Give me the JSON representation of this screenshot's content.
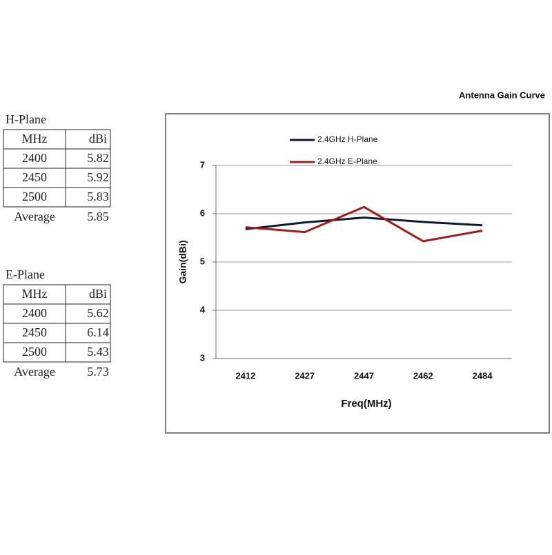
{
  "h_plane": {
    "title": "H-Plane",
    "header": [
      "MHz",
      "dBi"
    ],
    "rows": [
      [
        "2400",
        "5.82"
      ],
      [
        "2450",
        "5.92"
      ],
      [
        "2500",
        "5.83"
      ]
    ],
    "average": [
      "Average",
      "5.85"
    ]
  },
  "e_plane": {
    "title": "E-Plane",
    "header": [
      "MHz",
      "dBi"
    ],
    "rows": [
      [
        "2400",
        "5.62"
      ],
      [
        "2450",
        "6.14"
      ],
      [
        "2500",
        "5.43"
      ]
    ],
    "average": [
      "Average",
      "5.73"
    ]
  },
  "chart_data": {
    "type": "line",
    "title": "Antenna Gain Curve",
    "x_label": "Freq(MHz)",
    "y_label": "Gain(dBi)",
    "categories": [
      "2412",
      "2427",
      "2447",
      "2462",
      "2484"
    ],
    "series": [
      {
        "name": "2.4GHz H-Plane",
        "color": "#0d1a33",
        "values": [
          5.68,
          5.82,
          5.92,
          5.83,
          5.76
        ]
      },
      {
        "name": "2.4GHz E-Plane",
        "color": "#a31c1c",
        "values": [
          5.72,
          5.62,
          6.14,
          5.43,
          5.65
        ]
      }
    ],
    "ylim": [
      3,
      7
    ],
    "yticks": [
      3,
      4,
      5,
      6,
      7
    ],
    "grid": true
  }
}
